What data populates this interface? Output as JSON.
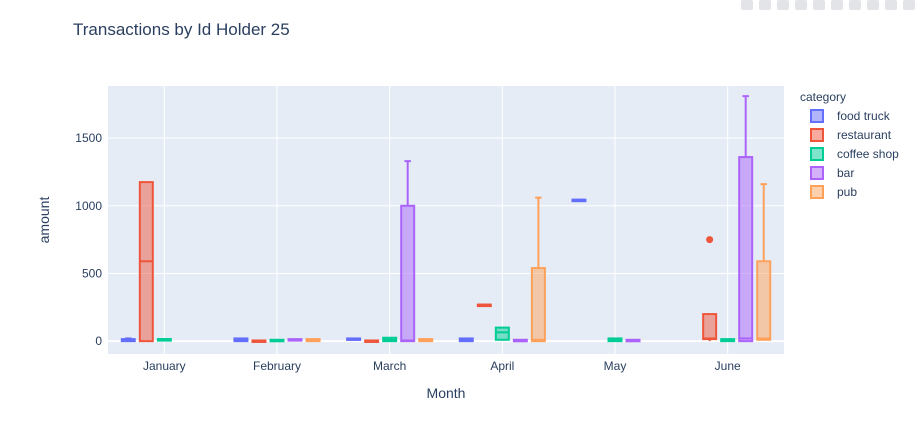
{
  "title": "Transactions by Id Holder 25",
  "colors": {
    "plot_bg": "#e5ecf6",
    "grid": "#ffffff",
    "text": "#2a3f5f"
  },
  "chart_data": {
    "type": "box",
    "title": "Transactions by Id Holder 25",
    "xlabel": "Month",
    "ylabel": "amount",
    "categories": [
      "January",
      "February",
      "March",
      "April",
      "May",
      "June"
    ],
    "ylim": [
      -95,
      1885
    ],
    "yticks": [
      0,
      500,
      1000,
      1500
    ],
    "grid": true,
    "legend_title": "category",
    "legend_position": "right",
    "series": [
      {
        "name": "food truck",
        "color": "#636efa",
        "boxes": [
          {
            "x": "January",
            "min": 0,
            "q1": 0,
            "median": 5,
            "q3": 15,
            "max": 20
          },
          {
            "x": "February",
            "min": 0,
            "q1": 0,
            "median": 10,
            "q3": 20,
            "max": 20
          },
          {
            "x": "March",
            "min": 10,
            "q1": 10,
            "median": 15,
            "q3": 20,
            "max": 20
          },
          {
            "x": "April",
            "min": 0,
            "q1": 0,
            "median": 10,
            "q3": 20,
            "max": 20
          },
          {
            "x": "May",
            "min": 1045,
            "q1": 1045,
            "median": 1045,
            "q3": 1045,
            "max": 1045
          }
        ]
      },
      {
        "name": "restaurant",
        "color": "#ef553b",
        "boxes": [
          {
            "x": "January",
            "min": 0,
            "q1": 0,
            "median": 590,
            "q3": 1175,
            "max": 1175
          },
          {
            "x": "February",
            "min": 0,
            "q1": 0,
            "median": 2,
            "q3": 5,
            "max": 5
          },
          {
            "x": "March",
            "min": 0,
            "q1": 0,
            "median": 2,
            "q3": 5,
            "max": 5
          },
          {
            "x": "April",
            "min": 270,
            "q1": 270,
            "median": 270,
            "q3": 270,
            "max": 270
          },
          {
            "x": "June",
            "min": 0,
            "q1": 15,
            "median": 20,
            "q3": 200,
            "max": 200,
            "outliers": [
              750
            ]
          }
        ]
      },
      {
        "name": "coffee shop",
        "color": "#00cc96",
        "boxes": [
          {
            "x": "January",
            "min": 15,
            "q1": 15,
            "median": 15,
            "q3": 15,
            "max": 15
          },
          {
            "x": "February",
            "min": 0,
            "q1": 0,
            "median": 5,
            "q3": 10,
            "max": 10
          },
          {
            "x": "March",
            "min": 0,
            "q1": 0,
            "median": 10,
            "q3": 25,
            "max": 25
          },
          {
            "x": "April",
            "min": 10,
            "q1": 10,
            "median": 65,
            "q3": 100,
            "max": 100
          },
          {
            "x": "May",
            "min": 0,
            "q1": 0,
            "median": 10,
            "q3": 20,
            "max": 20
          },
          {
            "x": "June",
            "min": 0,
            "q1": 0,
            "median": 10,
            "q3": 15,
            "max": 15
          }
        ]
      },
      {
        "name": "bar",
        "color": "#ab63fa",
        "boxes": [
          {
            "x": "February",
            "min": 5,
            "q1": 5,
            "median": 10,
            "q3": 15,
            "max": 15
          },
          {
            "x": "March",
            "min": 0,
            "q1": 0,
            "median": 5,
            "q3": 1000,
            "max": 1330
          },
          {
            "x": "April",
            "min": 0,
            "q1": 0,
            "median": 5,
            "q3": 10,
            "max": 10
          },
          {
            "x": "May",
            "min": 0,
            "q1": 0,
            "median": 5,
            "q3": 10,
            "max": 10
          },
          {
            "x": "June",
            "min": 0,
            "q1": 0,
            "median": 20,
            "q3": 1360,
            "max": 1810
          }
        ]
      },
      {
        "name": "pub",
        "color": "#ffa15a",
        "boxes": [
          {
            "x": "February",
            "min": 0,
            "q1": 0,
            "median": 5,
            "q3": 15,
            "max": 15
          },
          {
            "x": "March",
            "min": 0,
            "q1": 0,
            "median": 5,
            "q3": 15,
            "max": 15
          },
          {
            "x": "April",
            "min": 0,
            "q1": 0,
            "median": 10,
            "q3": 540,
            "max": 1060
          },
          {
            "x": "June",
            "min": 10,
            "q1": 10,
            "median": 20,
            "q3": 590,
            "max": 1160
          }
        ]
      }
    ]
  }
}
